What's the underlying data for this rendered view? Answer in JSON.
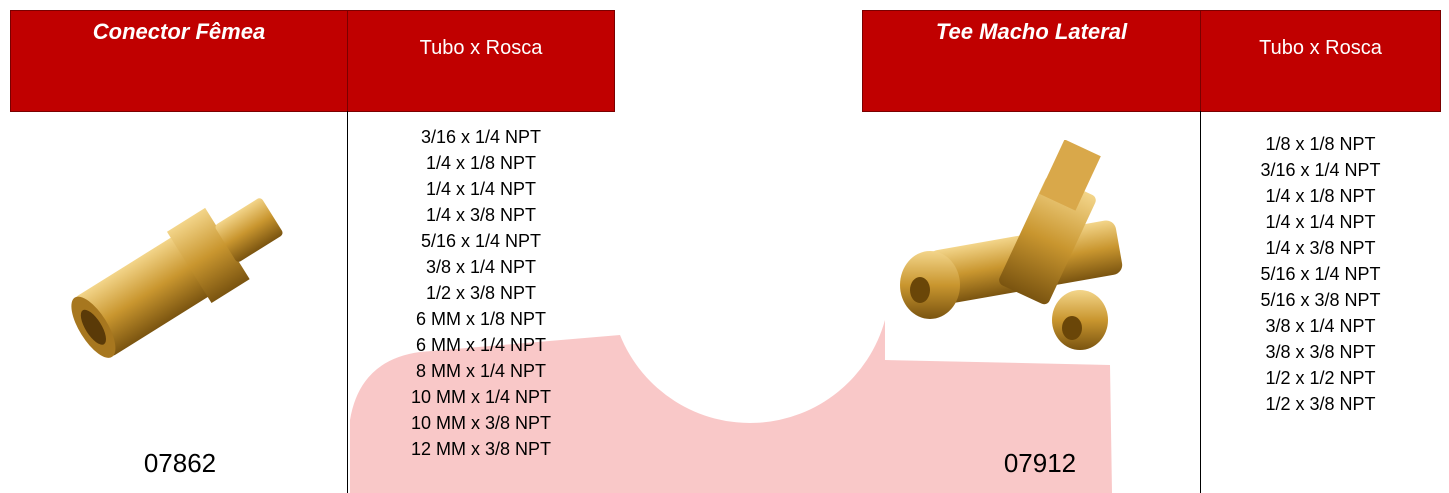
{
  "products": [
    {
      "title": "Conector Fêmea",
      "subtitle": "Tubo x Rosca",
      "code": "07862",
      "sizes": [
        "3/16 x 1/4 NPT",
        "1/4 x 1/8 NPT",
        "1/4 x 1/4 NPT",
        "1/4 x 3/8 NPT",
        "5/16 x 1/4 NPT",
        "3/8 x 1/4 NPT",
        "1/2 x 3/8 NPT",
        "6 MM x 1/8 NPT",
        "6 MM x 1/4 NPT",
        "8 MM x 1/4 NPT",
        "10 MM x 1/4 NPT",
        "10 MM x 3/8 NPT",
        "12 MM x 3/8 NPT"
      ]
    },
    {
      "title": "Tee Macho Lateral",
      "subtitle": "Tubo x Rosca",
      "code": "07912",
      "sizes": [
        "1/8 x 1/8 NPT",
        "3/16 x 1/4 NPT",
        "1/4 x 1/8 NPT",
        "1/4 x 1/4 NPT",
        "1/4 x 3/8 NPT",
        "5/16 x 1/4 NPT",
        "5/16 x 3/8 NPT",
        "3/8 x 1/4 NPT",
        "3/8 x 3/8 NPT",
        "1/2 x 1/2 NPT",
        "1/2 x 3/8 NPT"
      ]
    }
  ]
}
